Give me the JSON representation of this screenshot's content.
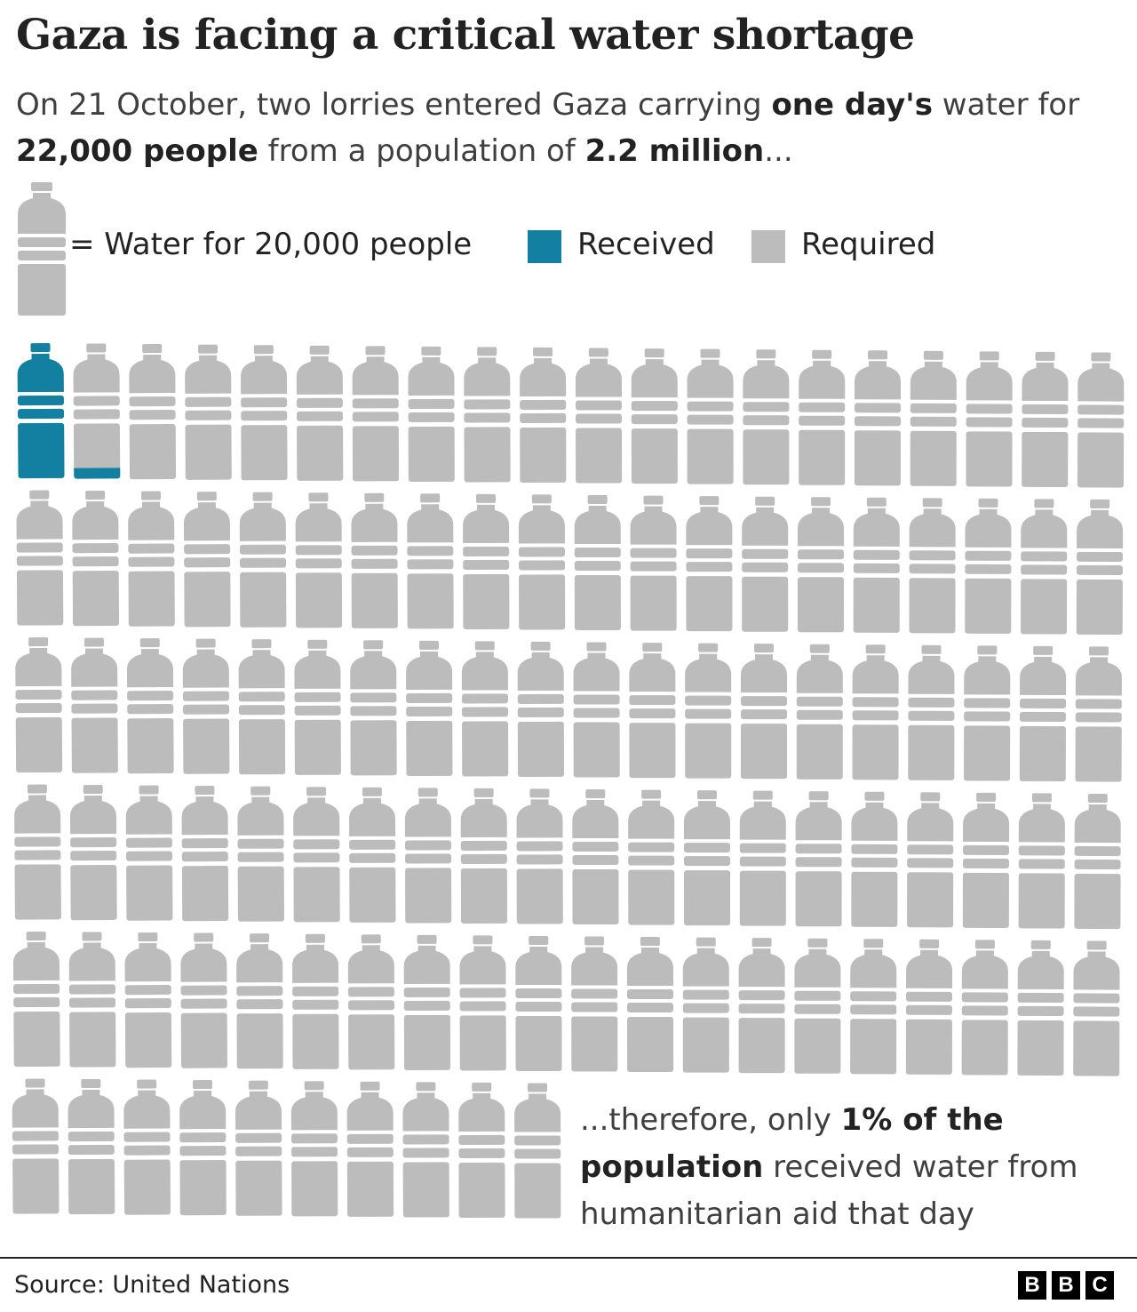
{
  "header": {
    "title": "Gaza is facing a critical water shortage",
    "subtitle": {
      "part1": "On 21 October, two lorries entered Gaza carrying ",
      "bold1": "one day's",
      "part2": " water for ",
      "bold2": "22,000 people",
      "part3": " from a population of ",
      "bold3": "2.2 million",
      "part4": "..."
    }
  },
  "legend": {
    "unit_label": "= Water for 20,000 people",
    "received_label": "Received",
    "required_label": "Required"
  },
  "note": {
    "part1": "...therefore, only ",
    "bold1": "1% of the population",
    "part2": " received water from humanitarian aid that day"
  },
  "footer": {
    "source": "Source: United Nations",
    "logo_letters": [
      "B",
      "B",
      "C"
    ]
  },
  "colors": {
    "received": "#1380A1",
    "required": "#BCBCBC",
    "text": "#222222"
  },
  "chart_data": {
    "type": "pictogram",
    "unit_people": 20000,
    "received_people": 22000,
    "required_people": 2200000,
    "received_units": 1.1,
    "total_units": 110,
    "icons_per_row": 20,
    "series": [
      {
        "name": "Received",
        "value": 22000
      },
      {
        "name": "Required",
        "value": 2200000
      }
    ]
  }
}
